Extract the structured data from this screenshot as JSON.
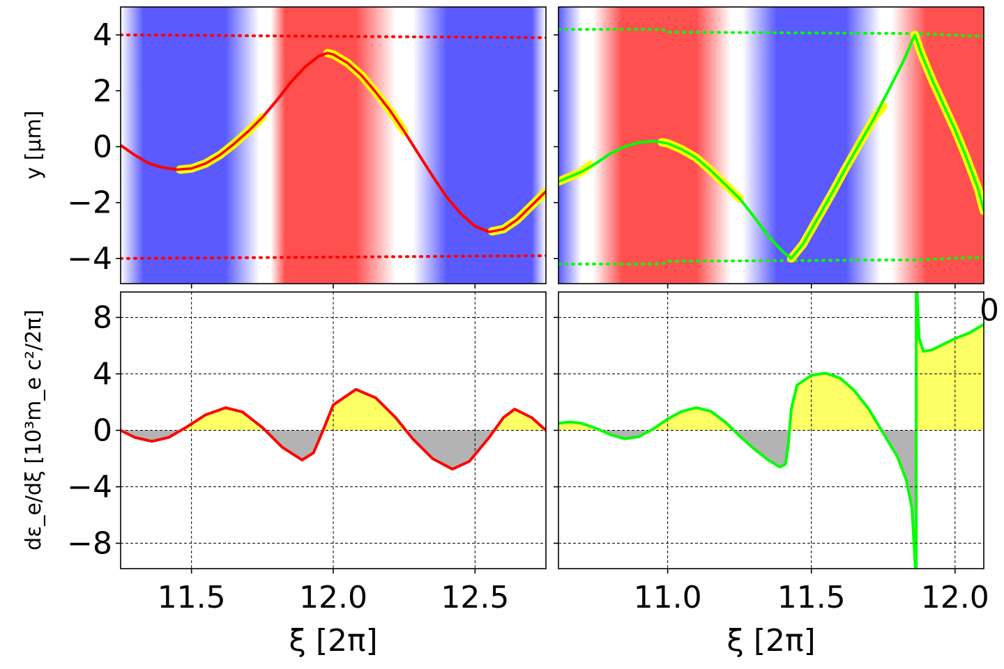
{
  "chart_data": [
    {
      "id": "top-left",
      "type": "line",
      "xlim": [
        11.25,
        12.75
      ],
      "ylim": [
        -4.9,
        5.0
      ],
      "ylabel": "y [μm]",
      "yticks": [
        4,
        2,
        0,
        -2,
        -4
      ],
      "ytick_labels": [
        "4",
        "2",
        "0",
        "−2",
        "−4"
      ],
      "grid": false,
      "background": "field colormap: red (positive) / white / blue (negative) vertical bands",
      "background_bands": [
        {
          "x": 11.25,
          "color": "#ffffff"
        },
        {
          "x": 11.33,
          "color": "#5a5aff"
        },
        {
          "x": 11.62,
          "color": "#5a5aff"
        },
        {
          "x": 11.74,
          "color": "#ffffff"
        },
        {
          "x": 11.78,
          "color": "#ffffff"
        },
        {
          "x": 11.83,
          "color": "#ff5050"
        },
        {
          "x": 12.08,
          "color": "#ff5050"
        },
        {
          "x": 12.22,
          "color": "#ffffff"
        },
        {
          "x": 12.28,
          "color": "#ffffff"
        },
        {
          "x": 12.4,
          "color": "#5a5aff"
        },
        {
          "x": 12.7,
          "color": "#5a5aff"
        },
        {
          "x": 12.75,
          "color": "#ffffff"
        }
      ],
      "series": [
        {
          "color": "#ff0000",
          "style": "dotted",
          "points": [
            [
              11.25,
              4.0
            ],
            [
              12.75,
              3.9
            ]
          ]
        },
        {
          "color": "#ff0000",
          "style": "dotted",
          "points": [
            [
              11.25,
              -4.0
            ],
            [
              12.75,
              -3.9
            ]
          ]
        },
        {
          "color": "#ff0000",
          "style": "solid",
          "points": [
            [
              11.25,
              0.05
            ],
            [
              11.3,
              -0.3
            ],
            [
              11.35,
              -0.6
            ],
            [
              11.4,
              -0.75
            ],
            [
              11.45,
              -0.82
            ],
            [
              11.5,
              -0.78
            ],
            [
              11.55,
              -0.6
            ],
            [
              11.6,
              -0.3
            ],
            [
              11.65,
              0.1
            ],
            [
              11.7,
              0.55
            ],
            [
              11.75,
              1.05
            ],
            [
              11.8,
              1.65
            ],
            [
              11.85,
              2.3
            ],
            [
              11.9,
              2.85
            ],
            [
              11.95,
              3.25
            ],
            [
              11.98,
              3.35
            ],
            [
              12.0,
              3.3
            ],
            [
              12.05,
              3.0
            ],
            [
              12.1,
              2.55
            ],
            [
              12.15,
              1.95
            ],
            [
              12.2,
              1.3
            ],
            [
              12.25,
              0.55
            ],
            [
              12.3,
              -0.25
            ],
            [
              12.35,
              -1.05
            ],
            [
              12.4,
              -1.8
            ],
            [
              12.45,
              -2.4
            ],
            [
              12.5,
              -2.85
            ],
            [
              12.55,
              -3.05
            ],
            [
              12.6,
              -2.95
            ],
            [
              12.65,
              -2.6
            ],
            [
              12.7,
              -2.1
            ],
            [
              12.75,
              -1.6
            ]
          ]
        },
        {
          "color": "#ffff00",
          "style": "highlight",
          "points": [
            [
              11.46,
              -0.82
            ],
            [
              11.5,
              -0.78
            ],
            [
              11.55,
              -0.6
            ],
            [
              11.6,
              -0.3
            ],
            [
              11.65,
              0.1
            ],
            [
              11.7,
              0.55
            ],
            [
              11.75,
              1.05
            ]
          ]
        },
        {
          "color": "#ffff00",
          "style": "highlight",
          "points": [
            [
              11.98,
              3.35
            ],
            [
              12.0,
              3.3
            ],
            [
              12.05,
              3.0
            ],
            [
              12.1,
              2.55
            ],
            [
              12.15,
              1.95
            ],
            [
              12.2,
              1.3
            ],
            [
              12.25,
              0.55
            ]
          ]
        },
        {
          "color": "#ffff00",
          "style": "highlight",
          "points": [
            [
              12.56,
              -3.03
            ],
            [
              12.6,
              -2.95
            ],
            [
              12.65,
              -2.6
            ],
            [
              12.7,
              -2.1
            ],
            [
              12.75,
              -1.6
            ]
          ]
        }
      ]
    },
    {
      "id": "top-right",
      "type": "line",
      "xlim": [
        10.62,
        12.1
      ],
      "ylim": [
        -4.9,
        5.0
      ],
      "ylabel": "",
      "yticks": [
        4,
        2,
        0,
        -2,
        -4
      ],
      "ytick_labels": [],
      "grid": false,
      "background": "field colormap: red (positive) / white / blue (negative) vertical bands",
      "background_bands": [
        {
          "x": 10.62,
          "color": "#5a5aff"
        },
        {
          "x": 10.7,
          "color": "#ffffff"
        },
        {
          "x": 10.74,
          "color": "#ffffff"
        },
        {
          "x": 10.84,
          "color": "#ff5050"
        },
        {
          "x": 11.1,
          "color": "#ff5050"
        },
        {
          "x": 11.22,
          "color": "#ffffff"
        },
        {
          "x": 11.26,
          "color": "#ffffff"
        },
        {
          "x": 11.38,
          "color": "#5a5aff"
        },
        {
          "x": 11.62,
          "color": "#5a5aff"
        },
        {
          "x": 11.74,
          "color": "#ffffff"
        },
        {
          "x": 11.78,
          "color": "#ffffff"
        },
        {
          "x": 11.9,
          "color": "#ff5050"
        },
        {
          "x": 12.1,
          "color": "#ff5050"
        }
      ],
      "series": [
        {
          "color": "#00ff00",
          "style": "dotted",
          "points": [
            [
              10.62,
              4.2
            ],
            [
              10.98,
              4.2
            ],
            [
              11.0,
              4.1
            ],
            [
              11.86,
              4.05
            ],
            [
              12.1,
              3.95
            ]
          ]
        },
        {
          "color": "#00ff00",
          "style": "dotted",
          "points": [
            [
              10.62,
              -4.2
            ],
            [
              10.98,
              -4.2
            ],
            [
              11.0,
              -4.1
            ],
            [
              11.86,
              -4.05
            ],
            [
              12.1,
              -3.95
            ]
          ]
        },
        {
          "color": "#00ff00",
          "style": "solid",
          "points": [
            [
              10.62,
              -1.25
            ],
            [
              10.7,
              -0.9
            ],
            [
              10.75,
              -0.6
            ],
            [
              10.8,
              -0.25
            ],
            [
              10.85,
              0.0
            ],
            [
              10.9,
              0.15
            ],
            [
              10.95,
              0.2
            ],
            [
              11.0,
              0.12
            ],
            [
              11.05,
              -0.1
            ],
            [
              11.1,
              -0.4
            ],
            [
              11.15,
              -0.85
            ],
            [
              11.2,
              -1.35
            ],
            [
              11.25,
              -1.85
            ],
            [
              11.3,
              -2.5
            ],
            [
              11.35,
              -3.2
            ],
            [
              11.4,
              -3.75
            ],
            [
              11.43,
              -4.0
            ],
            [
              11.47,
              -3.5
            ],
            [
              11.52,
              -2.6
            ],
            [
              11.57,
              -1.7
            ],
            [
              11.62,
              -0.75
            ],
            [
              11.67,
              0.15
            ],
            [
              11.72,
              1.05
            ],
            [
              11.77,
              2.05
            ],
            [
              11.82,
              3.05
            ],
            [
              11.86,
              4.0
            ],
            [
              11.88,
              3.4
            ],
            [
              11.92,
              2.4
            ],
            [
              11.96,
              1.5
            ],
            [
              12.0,
              0.6
            ],
            [
              12.04,
              -0.4
            ],
            [
              12.08,
              -1.5
            ],
            [
              12.1,
              -2.3
            ]
          ]
        },
        {
          "color": "#ffff00",
          "style": "highlight",
          "points": [
            [
              10.62,
              -1.25
            ],
            [
              10.7,
              -0.9
            ],
            [
              10.73,
              -0.65
            ]
          ]
        },
        {
          "color": "#ffff00",
          "style": "highlight",
          "points": [
            [
              10.98,
              0.16
            ],
            [
              11.0,
              0.12
            ],
            [
              11.05,
              -0.1
            ],
            [
              11.1,
              -0.4
            ],
            [
              11.15,
              -0.85
            ],
            [
              11.2,
              -1.35
            ],
            [
              11.25,
              -1.85
            ]
          ]
        },
        {
          "color": "#ffff00",
          "style": "highlight",
          "points": [
            [
              11.43,
              -4.0
            ],
            [
              11.47,
              -3.5
            ],
            [
              11.52,
              -2.6
            ],
            [
              11.57,
              -1.7
            ],
            [
              11.62,
              -0.75
            ],
            [
              11.67,
              0.15
            ],
            [
              11.72,
              1.05
            ],
            [
              11.75,
              1.45
            ]
          ]
        },
        {
          "color": "#ffff00",
          "style": "highlight",
          "points": [
            [
              11.86,
              4.0
            ],
            [
              11.88,
              3.4
            ],
            [
              11.92,
              2.4
            ],
            [
              11.96,
              1.5
            ],
            [
              12.0,
              0.6
            ],
            [
              12.04,
              -0.4
            ],
            [
              12.08,
              -1.5
            ],
            [
              12.1,
              -2.3
            ]
          ]
        }
      ],
      "clipped_tick_label": "0"
    },
    {
      "id": "bottom-left",
      "type": "area",
      "xlim": [
        11.25,
        12.75
      ],
      "ylim": [
        -9.8,
        9.8
      ],
      "xlabel": "ξ [2π]",
      "ylabel": "dε_e/dξ [10³m_e c²/2π]",
      "xticks": [
        11.5,
        12.0,
        12.5
      ],
      "xtick_labels": [
        "11.5",
        "12.0",
        "12.5"
      ],
      "yticks": [
        8,
        4,
        0,
        -4,
        -8
      ],
      "ytick_labels": [
        "8",
        "4",
        "0",
        "−4",
        "−8"
      ],
      "grid": true,
      "fill_positive_color": "#ffff66",
      "fill_negative_color": "#b3b3b3",
      "series": [
        {
          "color": "#ff0000",
          "points": [
            [
              11.25,
              0.0
            ],
            [
              11.3,
              -0.5
            ],
            [
              11.36,
              -0.78
            ],
            [
              11.42,
              -0.5
            ],
            [
              11.48,
              0.2
            ],
            [
              11.55,
              1.1
            ],
            [
              11.62,
              1.6
            ],
            [
              11.68,
              1.3
            ],
            [
              11.75,
              0.2
            ],
            [
              11.82,
              -1.2
            ],
            [
              11.89,
              -2.1
            ],
            [
              11.93,
              -1.6
            ],
            [
              11.96,
              -0.2
            ],
            [
              12.0,
              1.8
            ],
            [
              12.08,
              2.9
            ],
            [
              12.15,
              2.3
            ],
            [
              12.22,
              0.9
            ],
            [
              12.28,
              -0.6
            ],
            [
              12.35,
              -2.0
            ],
            [
              12.42,
              -2.75
            ],
            [
              12.48,
              -2.2
            ],
            [
              12.55,
              -0.5
            ],
            [
              12.6,
              0.9
            ],
            [
              12.64,
              1.5
            ],
            [
              12.7,
              0.9
            ],
            [
              12.75,
              0.0
            ]
          ]
        }
      ]
    },
    {
      "id": "bottom-right",
      "type": "area",
      "xlim": [
        10.62,
        12.1
      ],
      "ylim": [
        -9.8,
        9.8
      ],
      "xlabel": "ξ [2π]",
      "ylabel": "",
      "xticks": [
        11.0,
        11.5,
        12.0
      ],
      "xtick_labels": [
        "11.0",
        "11.5",
        "12.0"
      ],
      "yticks": [
        8,
        4,
        0,
        -4,
        -8
      ],
      "ytick_labels": [],
      "grid": true,
      "fill_positive_color": "#ffff66",
      "fill_negative_color": "#b3b3b3",
      "series": [
        {
          "color": "#00ff00",
          "points": [
            [
              10.62,
              0.5
            ],
            [
              10.66,
              0.6
            ],
            [
              10.7,
              0.5
            ],
            [
              10.75,
              0.15
            ],
            [
              10.8,
              -0.3
            ],
            [
              10.85,
              -0.6
            ],
            [
              10.9,
              -0.45
            ],
            [
              10.95,
              0.1
            ],
            [
              11.0,
              0.8
            ],
            [
              11.05,
              1.35
            ],
            [
              11.1,
              1.6
            ],
            [
              11.15,
              1.35
            ],
            [
              11.2,
              0.6
            ],
            [
              11.25,
              -0.4
            ],
            [
              11.3,
              -1.3
            ],
            [
              11.35,
              -2.1
            ],
            [
              11.39,
              -2.6
            ],
            [
              11.41,
              -2.4
            ],
            [
              11.42,
              -1.0
            ],
            [
              11.43,
              1.5
            ],
            [
              11.45,
              3.2
            ],
            [
              11.5,
              3.9
            ],
            [
              11.55,
              4.05
            ],
            [
              11.6,
              3.7
            ],
            [
              11.65,
              2.8
            ],
            [
              11.7,
              1.5
            ],
            [
              11.75,
              -0.2
            ],
            [
              11.8,
              -1.9
            ],
            [
              11.83,
              -3.5
            ],
            [
              11.85,
              -5.5
            ],
            [
              11.862,
              -9.8
            ]
          ]
        },
        {
          "color": "#00ff00",
          "points": [
            [
              11.868,
              9.8
            ],
            [
              11.875,
              6.5
            ],
            [
              11.89,
              5.6
            ],
            [
              11.92,
              5.7
            ],
            [
              11.96,
              6.1
            ],
            [
              12.0,
              6.5
            ],
            [
              12.05,
              6.9
            ],
            [
              12.1,
              7.5
            ]
          ]
        }
      ],
      "vertical_line_x": 11.865
    }
  ]
}
